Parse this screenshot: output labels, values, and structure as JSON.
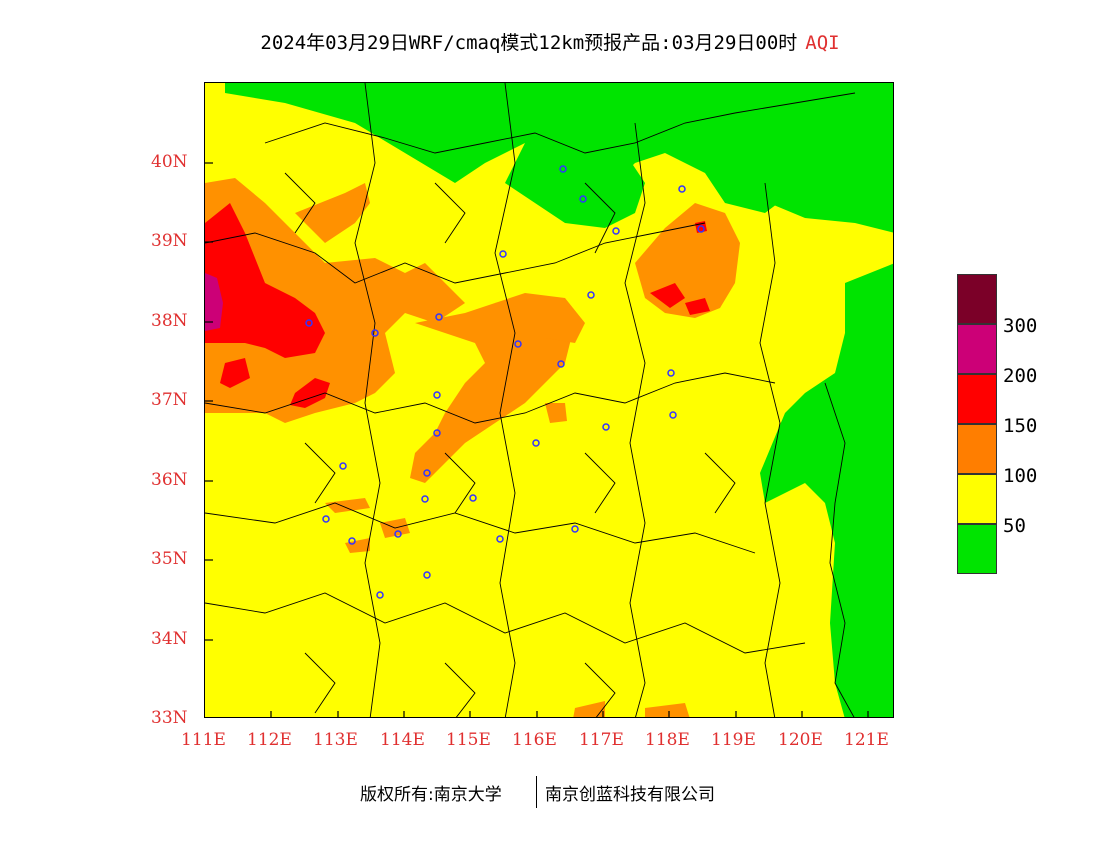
{
  "header": {
    "title": "2024年03月29日WRF/cmaq模式12km预报产品:03月29日00时",
    "aqi_label": "AQI"
  },
  "map": {
    "x_axis_labels": [
      "111E",
      "112E",
      "113E",
      "114E",
      "115E",
      "116E",
      "117E",
      "118E",
      "119E",
      "120E",
      "121E"
    ],
    "y_axis_labels": [
      "40N",
      "39N",
      "38N",
      "37N",
      "36N",
      "35N",
      "34N",
      "33N"
    ],
    "lon_range": [
      111,
      121.4
    ],
    "lat_range": [
      33,
      41
    ]
  },
  "legend": {
    "labels": [
      "300",
      "200",
      "150",
      "100",
      "50"
    ],
    "colors": {
      "above_300": "#7b0028",
      "level_200_300": "#cc0077",
      "level_150_200": "#ff0000",
      "level_100_150": "#ff7e00",
      "level_50_100": "#ffff00",
      "level_0_50": "#00e400"
    }
  },
  "footer": {
    "copyright_left": "版权所有:南京大学",
    "copyright_right": "南京创蓝科技有限公司"
  }
}
